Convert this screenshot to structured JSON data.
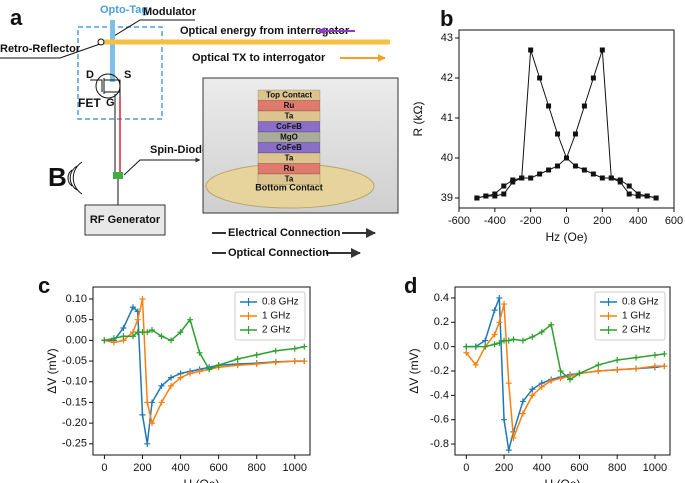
{
  "panel_a": {
    "label": "a",
    "opto_tag": "Opto-Tag",
    "modulator": "Modulator",
    "retro_reflector": "Retro-Reflector",
    "optical_in": "Optical energy from interrogator",
    "optical_tx": "Optical TX to interrogator",
    "fet_pins": [
      "D",
      "S",
      "G"
    ],
    "fet": "FET",
    "field": "B",
    "spin_diode": "Spin-Diode",
    "rf_generator": "RF Generator",
    "stack_layers": [
      "Top Contact",
      "Ru",
      "Ta",
      "CoFeB",
      "MgO",
      "CoFeB",
      "Ta",
      "Ru",
      "Ta",
      "Bottom Contact"
    ],
    "connections": [
      "Electrical Connection",
      "Optical Connection"
    ]
  },
  "chart_data": [
    {
      "type": "line",
      "label": "b",
      "xlabel": "Hz (Oe)",
      "ylabel": "R (kΩ)",
      "marker": "square",
      "x": [
        -500,
        -450,
        -400,
        -350,
        -300,
        -250,
        -200,
        -150,
        -100,
        -50,
        0,
        50,
        100,
        150,
        200,
        250,
        300,
        350,
        400,
        450,
        500
      ],
      "series": [
        {
          "color": "#111111",
          "values": [
            39.0,
            39.05,
            39.05,
            39.1,
            39.4,
            39.5,
            39.5,
            39.6,
            39.7,
            39.8,
            40.0,
            40.6,
            41.3,
            42.0,
            42.7,
            39.5,
            39.45,
            39.3,
            39.1,
            39.05,
            39.0
          ]
        },
        {
          "color": "#111111",
          "values": [
            39.0,
            39.05,
            39.1,
            39.3,
            39.45,
            39.5,
            42.7,
            42.0,
            41.3,
            40.6,
            40.0,
            39.8,
            39.7,
            39.6,
            39.5,
            39.5,
            39.4,
            39.1,
            39.05,
            39.05,
            39.0
          ]
        }
      ],
      "xlim": [
        -600,
        600
      ],
      "xticks": [
        -600,
        -400,
        -200,
        0,
        200,
        400,
        600
      ],
      "ylim": [
        38.75,
        43.2
      ],
      "yticks": [
        39,
        40,
        41,
        42,
        43
      ]
    },
    {
      "type": "line",
      "label": "c",
      "xlabel": "H (Oe)",
      "ylabel": "ΔV (mV)",
      "marker": "plus",
      "legend": "upper right",
      "x": [
        0,
        50,
        100,
        150,
        175,
        200,
        225,
        250,
        300,
        350,
        400,
        450,
        500,
        550,
        600,
        700,
        800,
        900,
        1000,
        1050
      ],
      "series": [
        {
          "name": "0.8 GHz",
          "color": "#1f77b4",
          "values": [
            0,
            0,
            0.03,
            0.08,
            0.07,
            -0.18,
            -0.25,
            -0.15,
            -0.11,
            -0.09,
            -0.08,
            -0.075,
            -0.07,
            -0.065,
            -0.06,
            -0.057,
            -0.055,
            -0.052,
            -0.05,
            -0.05
          ]
        },
        {
          "name": "1 GHz",
          "color": "#ff7f0e",
          "values": [
            0,
            -0.005,
            0,
            0.02,
            0.05,
            0.1,
            -0.15,
            -0.2,
            -0.15,
            -0.11,
            -0.09,
            -0.08,
            -0.075,
            -0.07,
            -0.065,
            -0.06,
            -0.057,
            -0.053,
            -0.05,
            -0.05
          ]
        },
        {
          "name": "2 GHz",
          "color": "#2ca02c",
          "values": [
            0,
            0.005,
            0.01,
            0.01,
            0.02,
            0.02,
            0.02,
            0.025,
            0.01,
            0,
            0.02,
            0.05,
            -0.03,
            -0.07,
            -0.06,
            -0.045,
            -0.035,
            -0.025,
            -0.02,
            -0.015
          ]
        }
      ],
      "xlim": [
        -60,
        1080
      ],
      "xticks": [
        0,
        200,
        400,
        600,
        800,
        1000
      ],
      "ylim": [
        -0.277,
        0.129
      ],
      "yticks": [
        -0.25,
        {
          "value": -0.2,
          "label": "-0.20"
        },
        -0.15,
        {
          "value": -0.1,
          "label": "-0.10"
        },
        -0.05,
        {
          "value": 0,
          "label": "0.00"
        },
        0.05,
        {
          "value": 0.1,
          "label": "0.10"
        }
      ]
    },
    {
      "type": "line",
      "label": "d",
      "xlabel": "H (Oe)",
      "ylabel": "ΔV (mV)",
      "marker": "plus",
      "legend": "upper right",
      "x": [
        0,
        50,
        100,
        150,
        175,
        200,
        225,
        250,
        300,
        350,
        400,
        450,
        500,
        550,
        600,
        700,
        800,
        900,
        1000,
        1050
      ],
      "series": [
        {
          "name": "0.8 GHz",
          "color": "#1f77b4",
          "values": [
            0,
            0,
            0.05,
            0.3,
            0.4,
            -0.6,
            -0.85,
            -0.7,
            -0.45,
            -0.35,
            -0.3,
            -0.27,
            -0.25,
            -0.23,
            -0.22,
            -0.2,
            -0.19,
            -0.18,
            -0.17,
            -0.16
          ]
        },
        {
          "name": "1 GHz",
          "color": "#ff7f0e",
          "values": [
            -0.05,
            -0.15,
            0,
            0.1,
            0.2,
            0.35,
            -0.3,
            -0.75,
            -0.55,
            -0.4,
            -0.33,
            -0.28,
            -0.26,
            -0.24,
            -0.22,
            -0.2,
            -0.19,
            -0.18,
            -0.16,
            -0.16
          ]
        },
        {
          "name": "2 GHz",
          "color": "#2ca02c",
          "values": [
            0,
            0,
            0,
            0.02,
            0.03,
            0.05,
            0.05,
            0.06,
            0.05,
            0.08,
            0.12,
            0.18,
            -0.2,
            -0.27,
            -0.22,
            -0.15,
            -0.11,
            -0.09,
            -0.07,
            -0.06
          ]
        }
      ],
      "xlim": [
        -60,
        1080
      ],
      "xticks": [
        0,
        200,
        400,
        600,
        800,
        1000
      ],
      "ylim": [
        -0.89,
        0.49
      ],
      "yticks": [
        -0.8,
        -0.6,
        -0.4,
        -0.2,
        {
          "value": 0,
          "label": "0.0"
        },
        0.2,
        0.4
      ]
    }
  ]
}
